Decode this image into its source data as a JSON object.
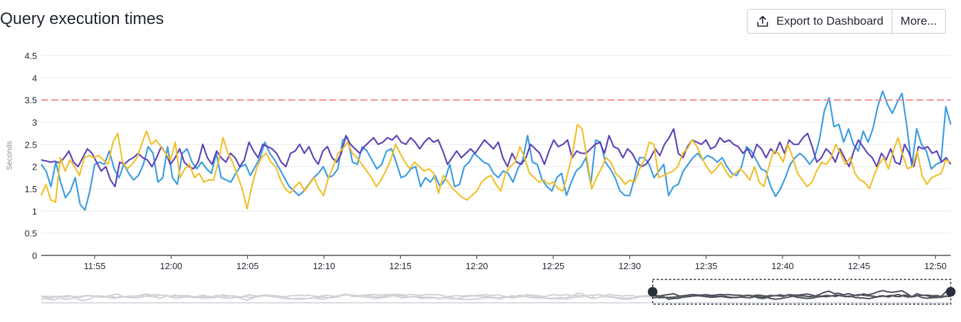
{
  "header": {
    "title": "Query execution times",
    "export_label": "Export to Dashboard",
    "export_icon": "upload-icon",
    "more_label": "More..."
  },
  "colors": {
    "blue": "#3a9be0",
    "purple": "#5e42b6",
    "yellow": "#f0c02b",
    "threshold": "#f08c8c",
    "grid": "#e6e8eb"
  },
  "chart_data": {
    "type": "line",
    "title": "",
    "xlabel": "",
    "ylabel": "Seconds",
    "ylim": [
      0,
      4.5
    ],
    "yticks": [
      "0",
      "0.5",
      "1",
      "1.5",
      "2",
      "2.5",
      "3",
      "3.5",
      "4",
      "4.5"
    ],
    "xticks": [
      "11:55",
      "12:00",
      "12:05",
      "12:10",
      "12:15",
      "12:20",
      "12:25",
      "12:30",
      "12:35",
      "12:40",
      "12:45",
      "12:50"
    ],
    "xrange": [
      "11:51:30",
      "12:51:00"
    ],
    "threshold": 3.5,
    "grid": true,
    "legend": "none",
    "series": [
      {
        "color": "#3a9be0",
        "values": [
          2.05,
          1.9,
          1.55,
          2.1,
          1.65,
          1.3,
          1.45,
          1.75,
          1.15,
          1.02,
          1.45,
          2.05,
          2.1,
          2.05,
          2.35,
          1.95,
          1.75,
          2.05,
          1.85,
          1.7,
          1.8,
          2.05,
          2.45,
          2.3,
          1.65,
          1.75,
          2.45,
          1.75,
          1.6,
          2.3,
          2.4,
          2.1,
          1.95,
          2.1,
          1.95,
          1.85,
          2.3,
          1.75,
          1.7,
          1.65,
          1.85,
          2.0,
          2.05,
          1.8,
          2.0,
          2.2,
          2.55,
          2.3,
          2.15,
          1.95,
          1.75,
          1.55,
          1.45,
          1.35,
          1.45,
          1.6,
          1.75,
          1.85,
          2.0,
          1.75,
          1.8,
          1.95,
          2.6,
          2.65,
          2.1,
          2.05,
          2.45,
          2.35,
          2.15,
          1.95,
          2.05,
          2.35,
          2.4,
          2.1,
          1.75,
          1.8,
          1.95,
          2.0,
          1.55,
          1.75,
          1.65,
          1.8,
          1.55,
          1.7,
          2.05,
          1.55,
          1.6,
          2.0,
          2.1,
          2.3,
          2.2,
          2.1,
          2.05,
          1.85,
          1.75,
          1.9,
          1.85,
          1.65,
          1.95,
          2.15,
          2.7,
          2.1,
          2.05,
          1.7,
          1.55,
          1.45,
          1.75,
          1.85,
          1.35,
          1.65,
          1.9,
          2.0,
          2.2,
          1.6,
          2.6,
          2.55,
          2.1,
          1.95,
          1.75,
          1.45,
          1.35,
          1.35,
          1.75,
          2.2,
          2.2,
          2.05,
          1.75,
          1.9,
          2.05,
          1.35,
          1.55,
          1.6,
          1.9,
          2.05,
          2.2,
          2.3,
          2.15,
          2.25,
          2.2,
          2.1,
          2.2,
          2.0,
          1.85,
          1.8,
          2.0,
          2.45,
          2.35,
          2.15,
          1.95,
          1.9,
          1.55,
          1.33,
          1.5,
          1.75,
          2.05,
          2.2,
          2.3,
          2.2,
          2.05,
          2.2,
          2.6,
          3.25,
          3.55,
          2.9,
          2.95,
          2.55,
          2.85,
          2.5,
          2.35,
          2.8,
          2.55,
          2.85,
          3.35,
          3.7,
          3.4,
          3.2,
          3.45,
          3.65,
          2.9,
          2.0,
          2.85,
          2.5,
          2.35,
          1.95,
          2.05,
          2.1,
          3.35,
          2.95
        ]
      },
      {
        "color": "#5e42b6",
        "values": [
          2.15,
          2.13,
          2.1,
          2.12,
          2.08,
          2.2,
          2.35,
          2.1,
          2.0,
          2.2,
          2.4,
          2.3,
          2.1,
          1.9,
          2.0,
          1.7,
          1.55,
          2.1,
          2.05,
          2.15,
          2.2,
          2.3,
          2.2,
          2.15,
          2.0,
          2.2,
          2.45,
          2.3,
          2.05,
          2.2,
          2.4,
          2.1,
          2.0,
          1.95,
          2.1,
          2.5,
          2.2,
          2.05,
          2.35,
          2.2,
          2.1,
          2.3,
          2.2,
          2.0,
          2.15,
          2.55,
          2.35,
          2.2,
          2.5,
          2.45,
          2.4,
          2.3,
          2.1,
          2.0,
          2.3,
          2.35,
          2.5,
          2.3,
          2.45,
          2.2,
          2.05,
          2.35,
          2.45,
          2.2,
          2.1,
          2.3,
          2.7,
          2.5,
          2.4,
          2.3,
          2.45,
          2.55,
          2.65,
          2.5,
          2.55,
          2.65,
          2.6,
          2.7,
          2.55,
          2.5,
          2.65,
          2.55,
          2.4,
          2.55,
          2.65,
          2.55,
          2.6,
          2.35,
          2.05,
          2.2,
          2.35,
          2.2,
          2.3,
          2.4,
          2.3,
          2.45,
          2.6,
          2.5,
          2.4,
          2.55,
          2.2,
          2.0,
          2.3,
          2.1,
          2.05,
          2.2,
          2.5,
          2.4,
          2.3,
          2.05,
          2.35,
          2.6,
          2.45,
          2.5,
          2.6,
          2.2,
          2.35,
          2.3,
          2.3,
          2.4,
          2.5,
          2.55,
          2.3,
          2.7,
          2.45,
          2.4,
          2.2,
          2.4,
          2.3,
          2.1,
          2.0,
          2.05,
          2.2,
          2.4,
          2.25,
          2.5,
          2.65,
          2.85,
          2.3,
          2.2,
          2.45,
          2.6,
          2.55,
          2.5,
          2.6,
          2.4,
          2.45,
          2.65,
          2.55,
          2.6,
          2.5,
          2.45,
          2.3,
          2.4,
          2.2,
          2.5,
          2.4,
          2.2,
          2.4,
          2.3,
          2.55,
          2.3,
          2.6,
          2.5,
          2.5,
          2.65,
          2.75,
          2.45,
          2.1,
          2.2,
          2.4,
          2.3,
          2.1,
          2.4,
          2.2,
          2.0,
          2.35,
          2.6,
          2.45,
          2.3,
          2.2,
          2.0,
          2.3,
          2.15,
          2.4,
          2.1,
          2.05,
          2.5,
          2.3,
          2.0,
          2.45,
          2.4,
          2.45,
          2.3,
          2.35,
          2.1,
          2.2,
          2.05
        ]
      },
      {
        "color": "#f0c02b",
        "values": [
          1.35,
          1.6,
          1.25,
          1.2,
          2.2,
          1.9,
          2.15,
          2.0,
          1.8,
          2.2,
          2.25,
          2.2,
          2.25,
          2.15,
          2.05,
          2.55,
          2.75,
          2.1,
          1.95,
          2.05,
          2.2,
          2.5,
          2.8,
          2.5,
          2.6,
          2.45,
          2.3,
          2.15,
          2.55,
          1.75,
          1.95,
          2.05,
          1.75,
          1.85,
          1.65,
          1.7,
          1.7,
          2.1,
          2.65,
          2.3,
          2.1,
          1.8,
          1.5,
          1.05,
          1.55,
          1.95,
          2.2,
          2.3,
          2.1,
          2.0,
          1.7,
          1.5,
          1.4,
          1.55,
          1.65,
          1.45,
          1.6,
          1.75,
          1.5,
          1.35,
          1.75,
          2.0,
          2.3,
          2.4,
          2.55,
          2.3,
          2.2,
          2.05,
          1.9,
          1.75,
          1.55,
          1.7,
          1.9,
          2.15,
          2.5,
          2.3,
          2.1,
          1.95,
          2.1,
          2.0,
          1.9,
          1.95,
          1.85,
          1.4,
          1.8,
          1.65,
          1.5,
          1.4,
          1.3,
          1.25,
          1.35,
          1.45,
          1.65,
          1.75,
          1.8,
          1.6,
          1.45,
          1.85,
          2.0,
          2.1,
          2.45,
          2.2,
          1.85,
          1.75,
          1.65,
          1.7,
          1.6,
          1.65,
          1.5,
          1.45,
          1.85,
          2.3,
          2.95,
          2.85,
          2.2,
          1.5,
          1.75,
          1.95,
          2.2,
          2.1,
          1.85,
          1.75,
          1.6,
          1.7,
          1.65,
          1.95,
          2.15,
          2.55,
          2.5,
          1.75,
          1.8,
          1.85,
          1.9,
          2.0,
          2.3,
          2.4,
          2.6,
          2.45,
          2.2,
          2.0,
          1.85,
          1.95,
          2.1,
          1.9,
          1.75,
          1.85,
          1.95,
          1.85,
          1.7,
          2.0,
          1.65,
          1.55,
          2.0,
          2.35,
          2.3,
          2.1,
          2.5,
          2.2,
          1.85,
          1.7,
          1.55,
          1.65,
          1.9,
          2.1,
          2.05,
          2.2,
          2.5,
          2.3,
          2.05,
          2.2,
          1.85,
          1.7,
          1.65,
          1.5,
          1.8,
          2.05,
          2.2,
          1.95,
          2.35,
          2.65,
          2.25,
          1.95,
          2.0,
          2.35,
          1.8,
          1.6,
          1.75,
          1.8,
          1.85,
          2.15,
          2.1
        ]
      }
    ],
    "navigator": {
      "selection": [
        "12:31:30",
        "12:51:00"
      ]
    }
  }
}
